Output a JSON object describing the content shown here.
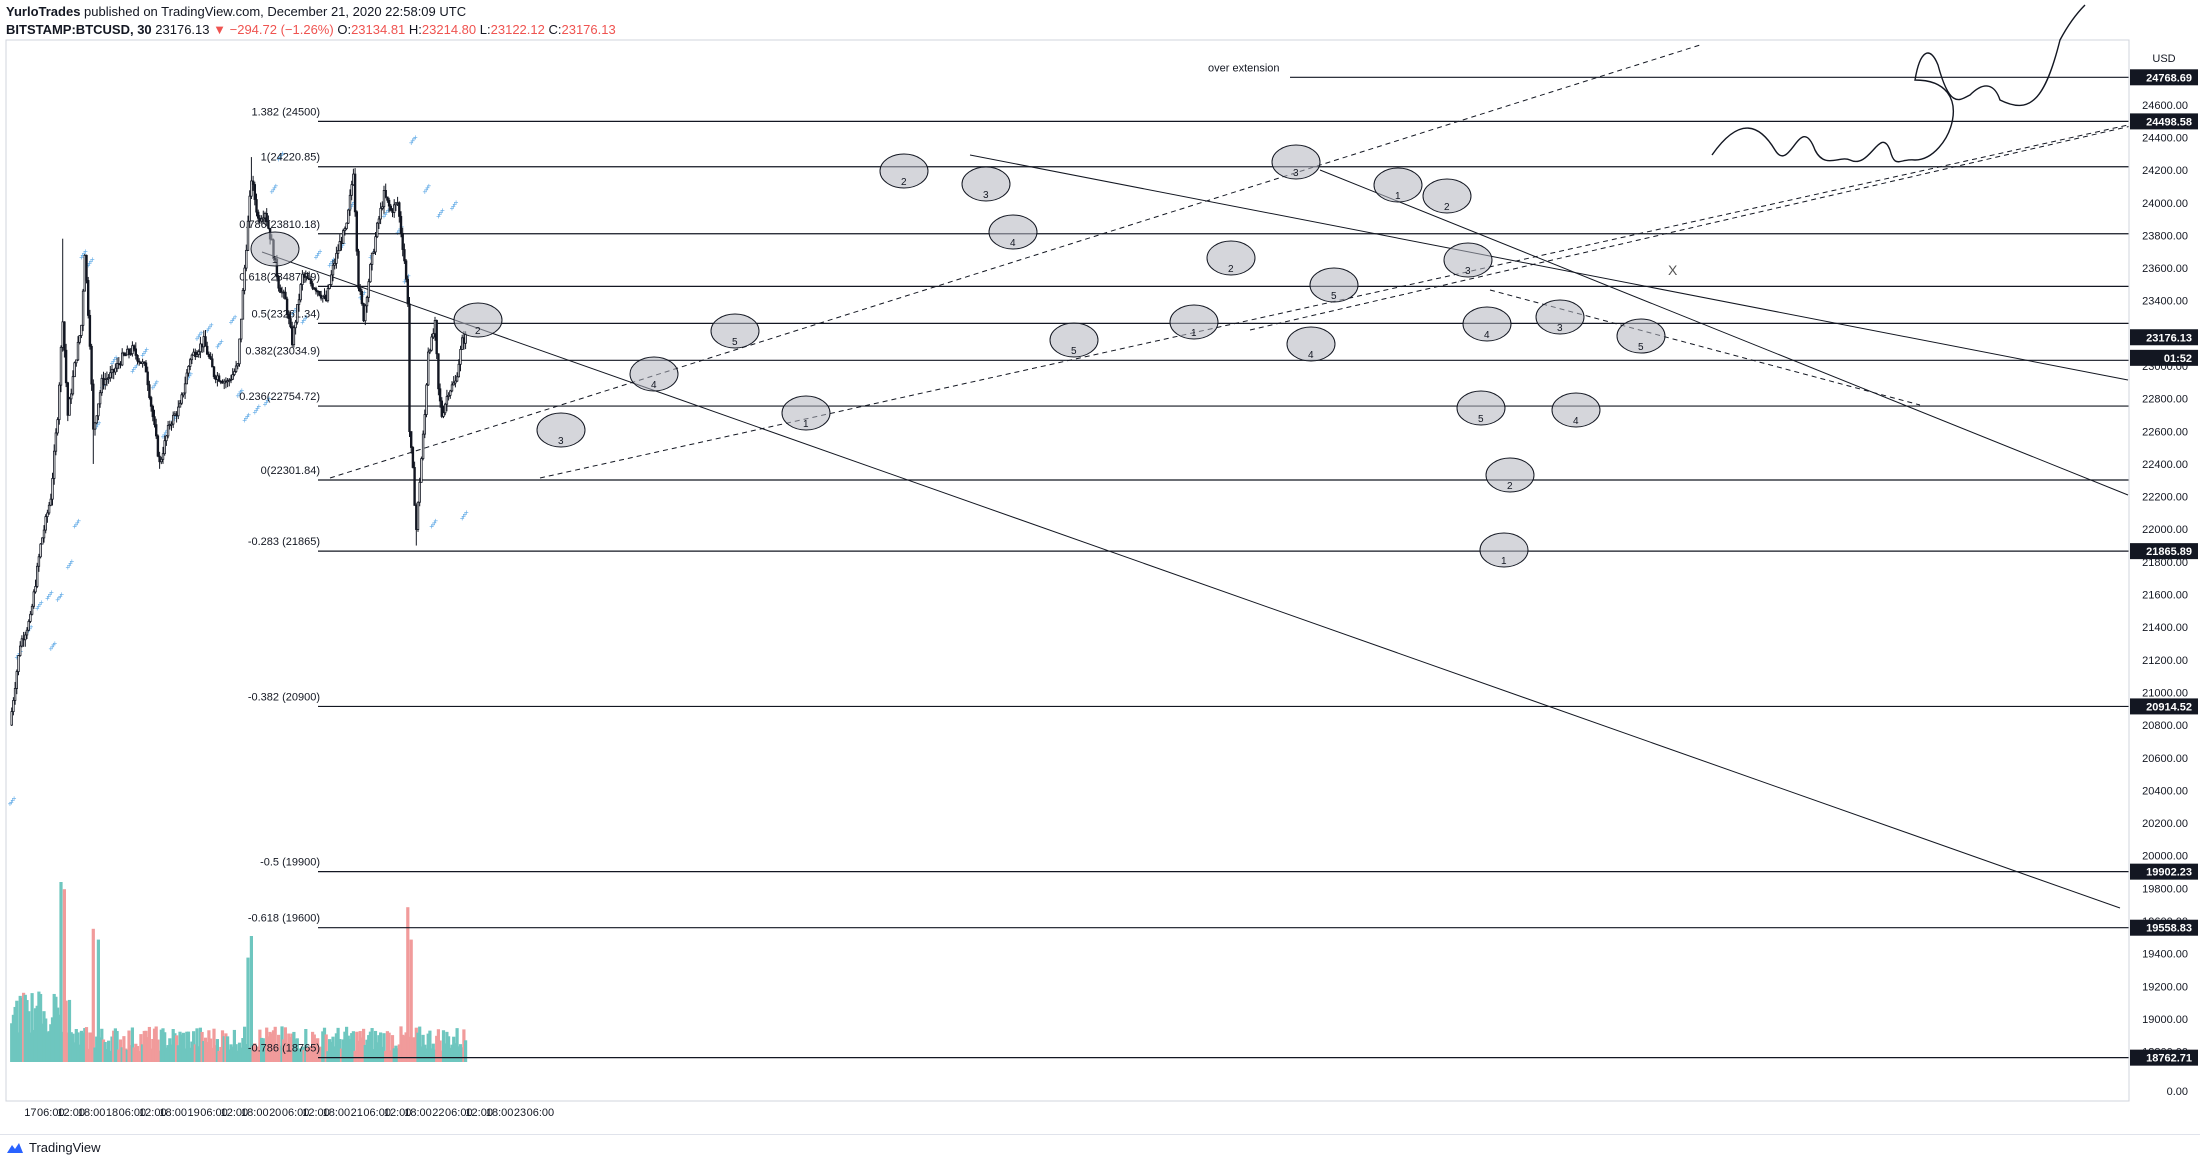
{
  "header": {
    "publisher": "YurloTrades",
    "published_text": "published on TradingView.com, December 21, 2020 22:58:09 UTC",
    "symbol": "BITSTAMP:BTCUSD, 30",
    "last": "23176.13",
    "change": "▼ −294.72 (−1.26%)",
    "o_label": "O:",
    "o": "23134.81",
    "h_label": "H:",
    "h": "23214.80",
    "l_label": "L:",
    "l": "23122.12",
    "c_label": "C:",
    "c": "23176.13"
  },
  "footer": {
    "brand": "TradingView"
  },
  "colors": {
    "up": "#6ec6bf",
    "down": "#f19b9b",
    "psar": "#5fa9e6",
    "line": "#131722",
    "ellipse": "#b2b5be"
  },
  "chart_data": {
    "type": "candlestick",
    "currency_label": "USD",
    "y_ticks": [
      "24600.00",
      "24400.00",
      "24200.00",
      "24000.00",
      "23800.00",
      "23600.00",
      "23400.00",
      "23000.00",
      "22800.00",
      "22600.00",
      "22400.00",
      "22200.00",
      "22000.00",
      "21800.00",
      "21600.00",
      "21400.00",
      "21200.00",
      "21000.00",
      "20800.00",
      "20600.00",
      "20400.00",
      "20200.00",
      "20000.00",
      "19800.00",
      "19600.00",
      "19400.00",
      "19200.00",
      "19000.00",
      "18800.00",
      "0.00"
    ],
    "x_ticks": [
      "17",
      "06:00",
      "12:00",
      "18:00",
      "18",
      "06:00",
      "12:00",
      "18:00",
      "19",
      "06:00",
      "12:00",
      "18:00",
      "20",
      "06:00",
      "12:00",
      "18:00",
      "21",
      "06:00",
      "12:00",
      "18:00",
      "22",
      "06:00",
      "12:00",
      "18:00",
      "23",
      "06:00"
    ],
    "price_tags": [
      {
        "price": 24768.69,
        "label": "24768.69"
      },
      {
        "price": 24498.58,
        "label": "24498.58"
      },
      {
        "price": 23176.13,
        "label": "23176.13"
      },
      {
        "price": 23050,
        "label": "01:52"
      },
      {
        "price": 21865.89,
        "label": "21865.89"
      },
      {
        "price": 20914.52,
        "label": "20914.52"
      },
      {
        "price": 19902.23,
        "label": "19902.23"
      },
      {
        "price": 19558.83,
        "label": "19558.83"
      },
      {
        "price": 18762.71,
        "label": "18762.71"
      }
    ],
    "levels": [
      {
        "label": "over extension",
        "price": 24768.69
      },
      {
        "label": "1.382 (24500)",
        "price": 24498.58
      },
      {
        "label": "1(24220.85)",
        "price": 24220.85
      },
      {
        "label": "0.786(23810.18)",
        "price": 23810.18
      },
      {
        "label": "0.618(23487.79)",
        "price": 23487.79
      },
      {
        "label": "0.5(23261.34)",
        "price": 23261.34
      },
      {
        "label": "0.382(23034.9)",
        "price": 23034.9
      },
      {
        "label": "0.236(22754.72)",
        "price": 22754.72
      },
      {
        "label": "0(22301.84)",
        "price": 22301.84
      },
      {
        "label": "-0.283 (21865)",
        "price": 21865.89
      },
      {
        "label": "-0.382 (20900)",
        "price": 20914.52
      },
      {
        "label": "-0.5 (19900)",
        "price": 19902.23
      },
      {
        "label": "-0.618 (19600)",
        "price": 19558.83
      },
      {
        "label": "-0.786 (18765)",
        "price": 18762.71
      }
    ],
    "wave_labels": [
      "1",
      "2",
      "3",
      "4",
      "5",
      "1",
      "2",
      "3",
      "4",
      "5",
      "1",
      "2",
      "3",
      "4",
      "5",
      "1",
      "2",
      "3",
      "4",
      "5",
      "1",
      "2",
      "3",
      "4",
      "5"
    ],
    "annotation_x": "X",
    "price_range": [
      18620,
      24960
    ],
    "time_range": [
      "Dec 16 ~18:00",
      "Dec 23 ~10:00"
    ]
  }
}
